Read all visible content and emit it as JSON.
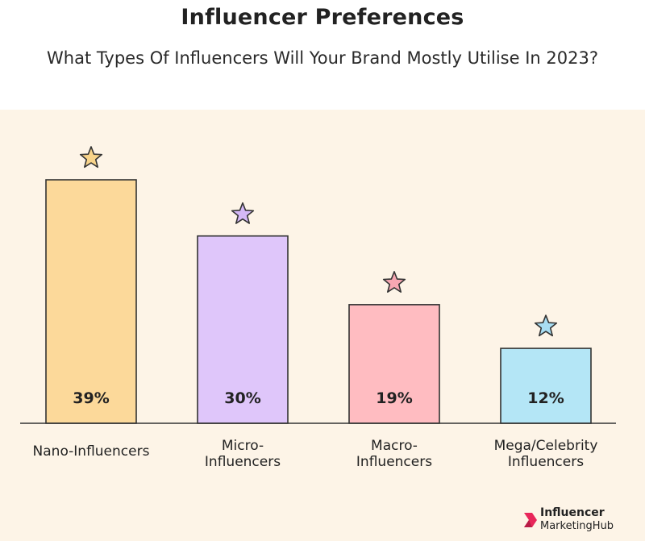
{
  "title": "Influencer Preferences",
  "subtitle": "What Types Of Influencers Will Your Brand Mostly Utilise In 2023?",
  "logo": {
    "line1": "Influencer",
    "line2": "MarketingHub",
    "accent_color": "#e8265a"
  },
  "chart_data": {
    "type": "bar",
    "title": "Influencer Preferences",
    "subtitle": "What Types Of Influencers Will Your Brand Mostly Utilise In 2023?",
    "categories": [
      [
        "Nano-Influencers"
      ],
      [
        "Micro-",
        "Influencers"
      ],
      [
        "Macro-",
        "Influencers"
      ],
      [
        "Mega/Celebrity",
        "Influencers"
      ]
    ],
    "values": [
      39,
      30,
      19,
      12
    ],
    "value_labels": [
      "39%",
      "30%",
      "19%",
      "12%"
    ],
    "unit": "%",
    "colors": [
      "#fcd99a",
      "#dfc6fa",
      "#ffbcc1",
      "#b4e6f6"
    ],
    "star_colors": [
      "#f8d48a",
      "#d4b8f6",
      "#f7a7b2",
      "#a8ddf2"
    ],
    "marker_icon": "star-icon",
    "background_color": "#fdf4e7",
    "ylim": [
      0,
      39
    ],
    "grid": false,
    "legend": "none"
  }
}
